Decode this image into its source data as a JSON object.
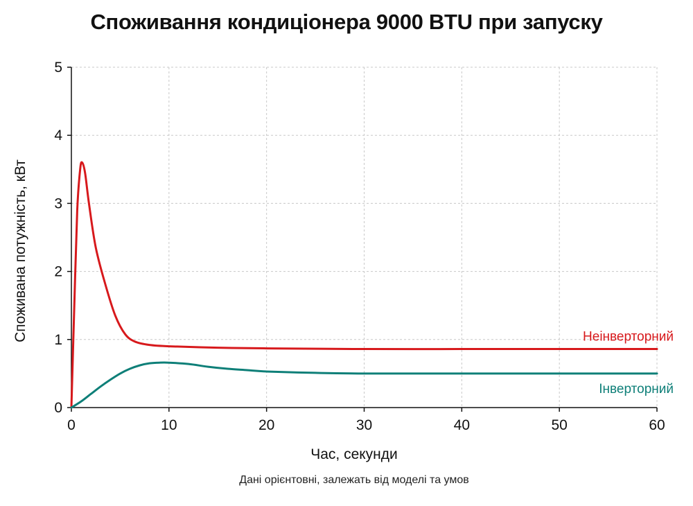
{
  "chart_data": {
    "type": "line",
    "title": "Споживання кондиціонера 9000 BTU при запуску",
    "xlabel": "Час, секунди",
    "ylabel": "Споживана потужність, кВт",
    "note": "Дані орієнтовні, залежать від моделі та умов",
    "xlim": [
      0,
      60
    ],
    "ylim": [
      0,
      5
    ],
    "xticks": [
      0,
      10,
      20,
      30,
      40,
      50,
      60
    ],
    "yticks": [
      0,
      1,
      2,
      3,
      4,
      5
    ],
    "grid": true,
    "legend": "inline labels at right end of lines",
    "series": [
      {
        "name": "Неінверторний",
        "color": "#d7191c",
        "x": [
          0,
          0.3,
          0.6,
          0.9,
          1.1,
          1.4,
          1.8,
          2.5,
          3.5,
          4.5,
          5.5,
          6.5,
          8,
          10,
          15,
          20,
          30,
          40,
          50,
          60
        ],
        "y": [
          0,
          1.5,
          2.9,
          3.5,
          3.6,
          3.45,
          3.0,
          2.35,
          1.8,
          1.35,
          1.08,
          0.97,
          0.92,
          0.9,
          0.88,
          0.87,
          0.86,
          0.86,
          0.86,
          0.86
        ]
      },
      {
        "name": "Інверторний",
        "color": "#0e7f78",
        "x": [
          0,
          1,
          2,
          3,
          4,
          5,
          6,
          7,
          8,
          9,
          10,
          12,
          14,
          16,
          18,
          20,
          25,
          30,
          40,
          50,
          60
        ],
        "y": [
          0,
          0.09,
          0.2,
          0.31,
          0.41,
          0.5,
          0.57,
          0.62,
          0.65,
          0.66,
          0.66,
          0.64,
          0.6,
          0.57,
          0.55,
          0.53,
          0.51,
          0.5,
          0.5,
          0.5,
          0.5
        ]
      }
    ]
  }
}
